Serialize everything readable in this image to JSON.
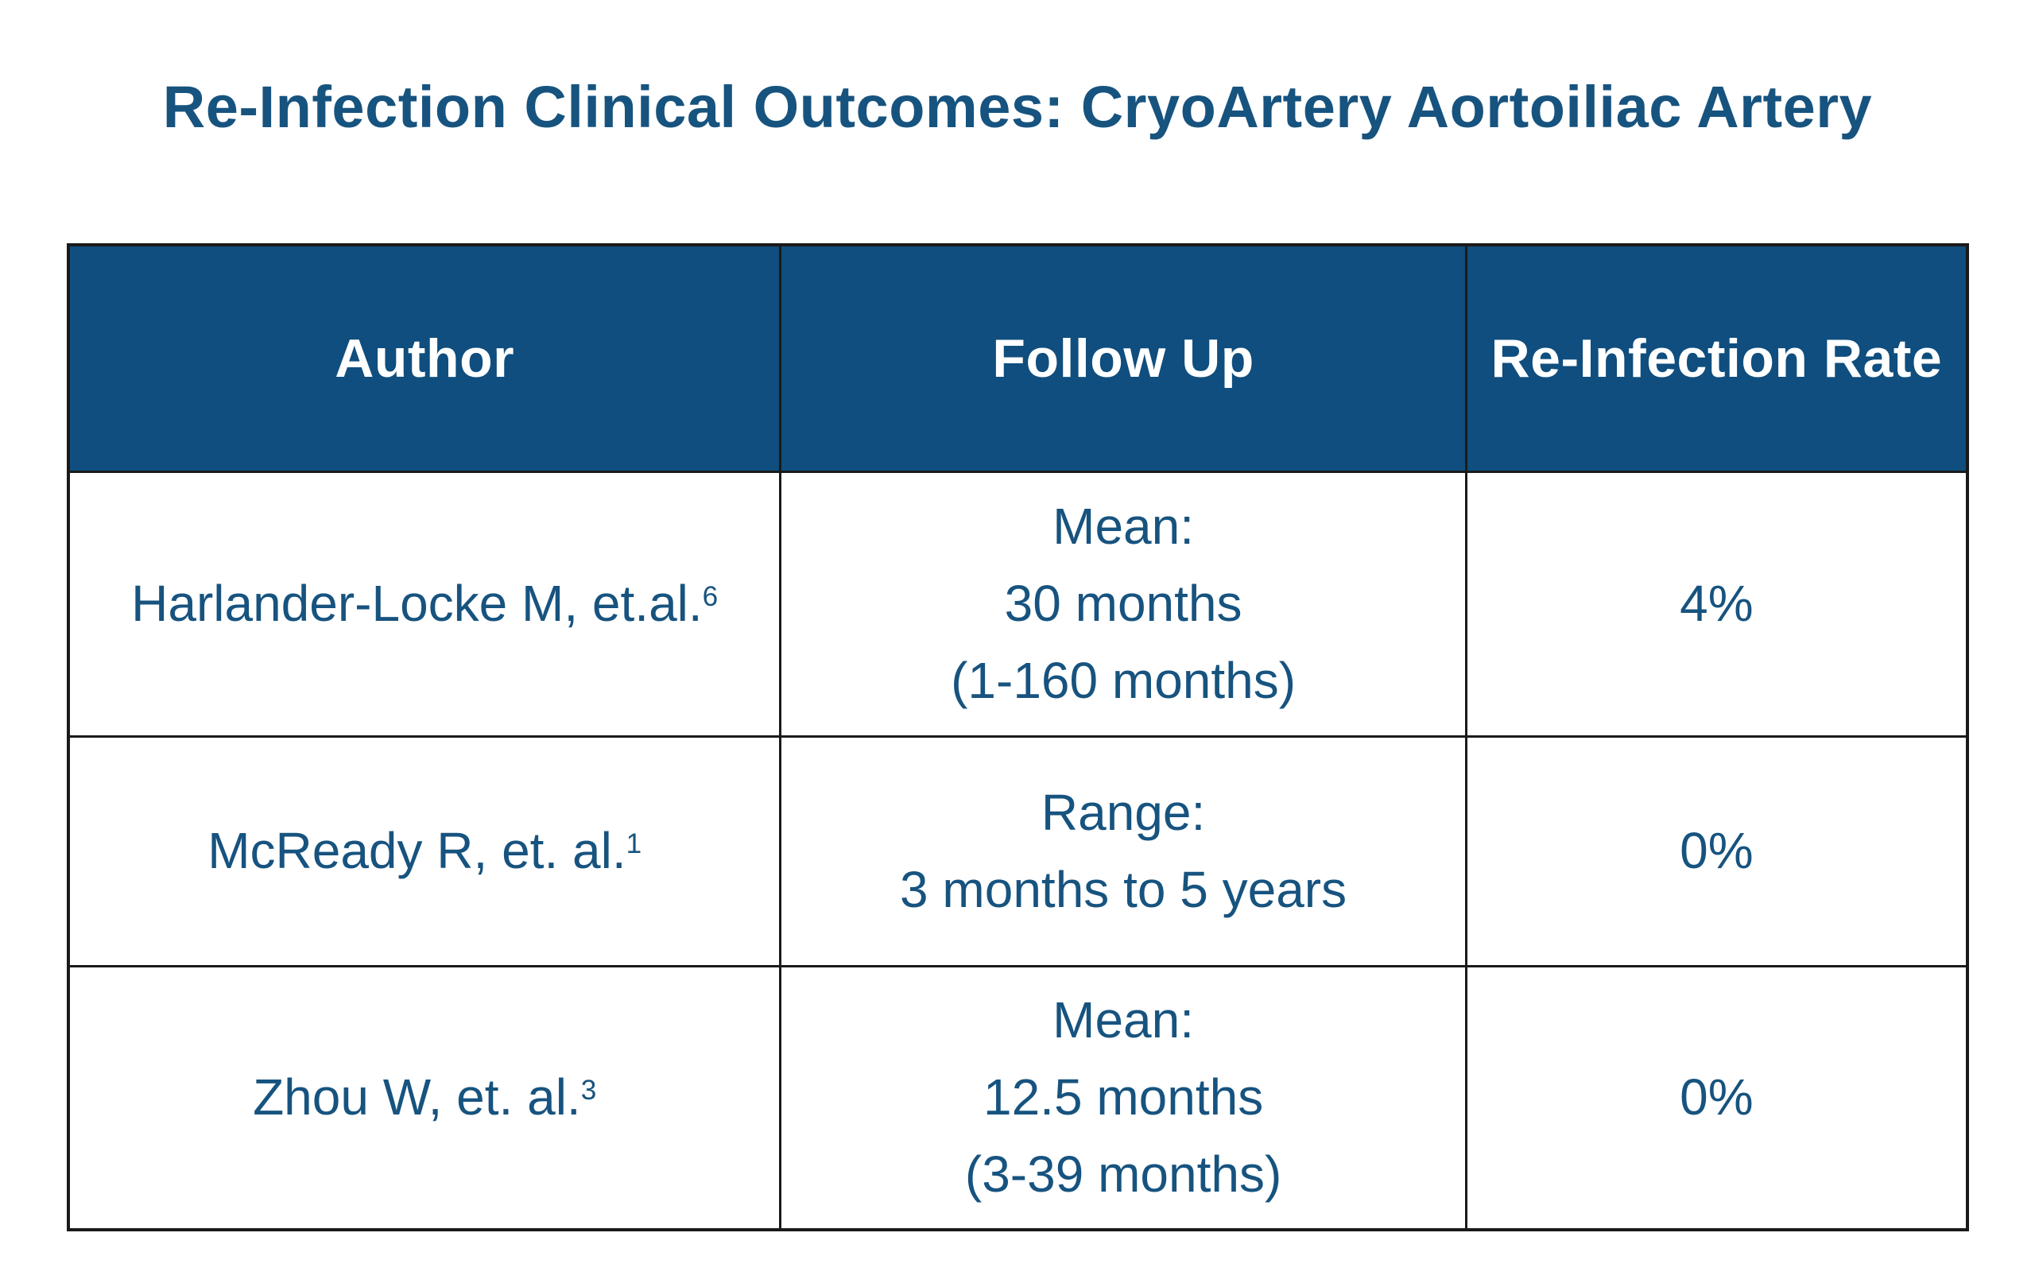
{
  "title": "Re-Infection Clinical Outcomes: CryoArtery Aortoiliac Artery",
  "colors": {
    "title_text": "#17537F",
    "header_background": "#0F4E7E",
    "header_text": "#FFFFFF",
    "body_text": "#17537F",
    "grid_border": "#1A1A1A",
    "page_background": "#FFFFFF"
  },
  "table": {
    "columns": [
      "Author",
      "Follow Up",
      "Re-Infection Rate"
    ],
    "rows": [
      {
        "author": "Harlander-Locke M, et.al.",
        "ref": "6",
        "followup_line1": "Mean:",
        "followup_line2": "30 months",
        "followup_line3": "(1-160 months)",
        "rate": "4%"
      },
      {
        "author": "McReady R, et. al.",
        "ref": "1",
        "followup_line1": "Range:",
        "followup_line2": "3 months to 5 years",
        "rate": "0%"
      },
      {
        "author": "Zhou W, et. al.",
        "ref": "3",
        "followup_line1": "Mean:",
        "followup_line2": "12.5 months",
        "followup_line3": "(3-39 months)",
        "rate": "0%"
      }
    ]
  },
  "chart_data": {
    "type": "table",
    "title": "Re-Infection Clinical Outcomes: CryoArtery Aortoiliac Artery",
    "columns": [
      "Author",
      "Follow Up",
      "Re-Infection Rate"
    ],
    "rows": [
      [
        "Harlander-Locke M, et.al.6",
        "Mean: 30 months (1-160 months)",
        "4%"
      ],
      [
        "McReady R, et. al.1",
        "Range: 3 months to 5 years",
        "0%"
      ],
      [
        "Zhou W, et. al.3",
        "Mean: 12.5 months (3-39 months)",
        "0%"
      ]
    ],
    "notes": "Header row navy (#0F4E7E) with white bold text; body text navy (#17537F); superscript reference numbers 6, 1, 3 follow author names; re-infection rates as percentages."
  }
}
